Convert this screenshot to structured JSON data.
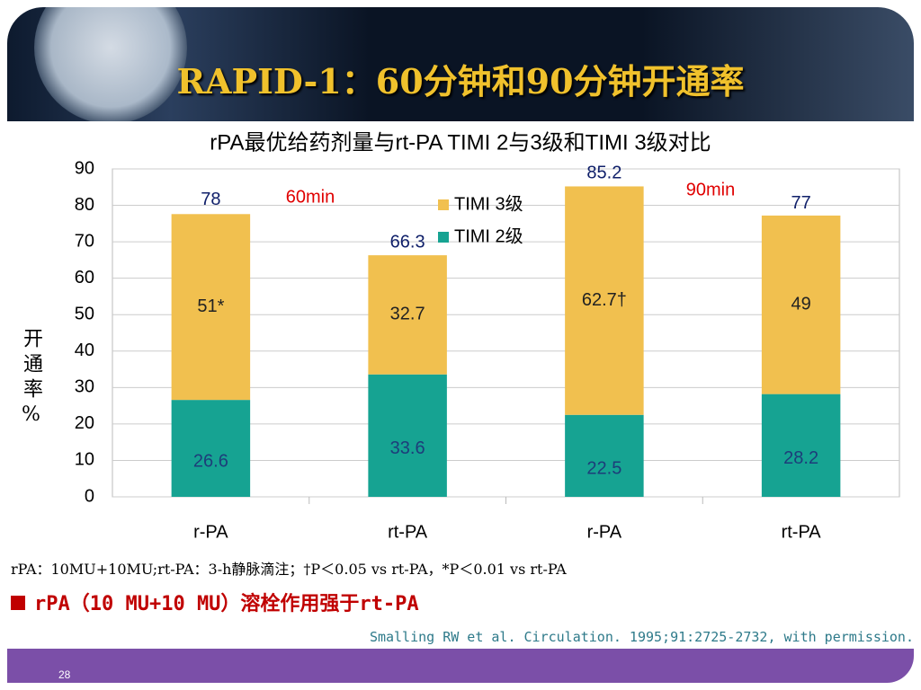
{
  "chart_data": {
    "type": "stacked_bar",
    "title": "rPA最优给药剂量与rt-PA  TIMI 2与3级和TIMI 3级对比",
    "y_label": "开通率%",
    "categories": [
      "r-PA",
      "rt-PA",
      "r-PA",
      "rt-PA"
    ],
    "series": [
      {
        "name": "TIMI 2级",
        "color": "#16a392",
        "values": [
          26.6,
          33.6,
          22.5,
          28.2
        ]
      },
      {
        "name": "TIMI 3级",
        "color": "#f1c04f",
        "values": [
          51,
          32.7,
          62.7,
          49
        ],
        "value_labels": [
          "51*",
          "32.7",
          "62.7†",
          "49"
        ]
      }
    ],
    "totals": [
      78,
      66.3,
      85.2,
      77
    ],
    "annotations": [
      "60min",
      "90min"
    ],
    "ylim": [
      0,
      90
    ],
    "yticks": [
      0,
      10,
      20,
      30,
      40,
      50,
      60,
      70,
      80,
      90
    ],
    "grid": true,
    "legend": "top"
  },
  "slide": {
    "title": "RAPID-1：60分钟和90分钟开通率",
    "footnote": "rPA：10MU+10MU;rt-PA：3-h静脉滴注；†P＜0.05 vs rt-PA，*P＜0.01 vs rt-PA",
    "bullet": "rPA（10 MU+10 MU）溶栓作用强于rt-PA",
    "citation": "Smalling RW et al. Circulation. 1995;91:2725-2732, with permission.",
    "page": "28"
  }
}
